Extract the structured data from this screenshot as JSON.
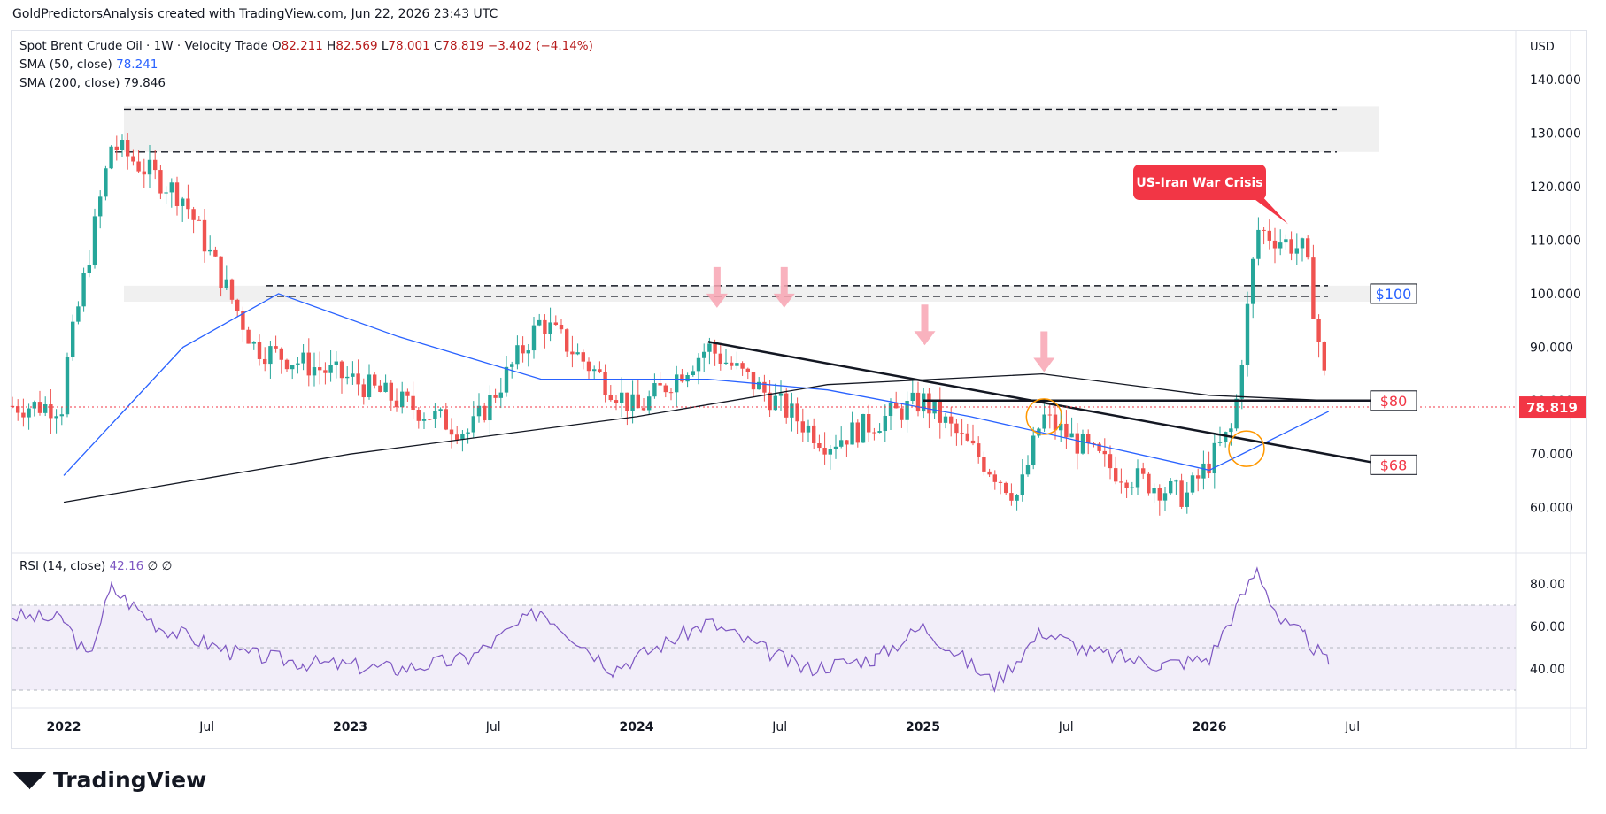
{
  "header": {
    "credit": "GoldPredictorsAnalysis created with TradingView.com, Jun 22, 2026 23:43 UTC"
  },
  "legend": {
    "symbol": "Spot Brent Crude Oil · 1W · Velocity Trade",
    "o_label": "O",
    "o": "82.211",
    "h_label": "H",
    "h": "82.569",
    "l_label": "L",
    "l": "78.001",
    "c_label": "C",
    "c": "78.819",
    "chg": "−3.402 (−4.14%)",
    "sma50_label": "SMA (50, close)",
    "sma50": "78.241",
    "sma200_label": "SMA (200, close)",
    "sma200": "79.846"
  },
  "rsi_legend": {
    "label": "RSI (14, close)",
    "value": "42.16",
    "extra": "∅  ∅"
  },
  "currency": "USD",
  "footer": {
    "brand": "TradingView"
  },
  "colors": {
    "up": "#26a69a",
    "down": "#ef5350",
    "sma50": "#2962ff",
    "sma200": "#131722",
    "rsi": "#7e57c2",
    "annotation": "#f23645"
  },
  "chart_data": {
    "type": "candlestick",
    "title": "Spot Brent Crude Oil · 1W · Velocity Trade",
    "x_labels": [
      "2022",
      "Jul",
      "2023",
      "Jul",
      "2024",
      "Jul",
      "2025",
      "Jul",
      "2026",
      "Jul"
    ],
    "y_ticks": [
      "140.000",
      "130.000",
      "120.000",
      "110.000",
      "100.000",
      "90.000",
      "80.000",
      "70.000",
      "60.000"
    ],
    "ylim": [
      52,
      145
    ],
    "last_price": "78.819",
    "price_points": [
      {
        "d": "2022-01",
        "v": 84
      },
      {
        "d": "2022-03",
        "v": 128
      },
      {
        "d": "2022-06",
        "v": 118
      },
      {
        "d": "2022-09",
        "v": 90
      },
      {
        "d": "2023-01",
        "v": 84
      },
      {
        "d": "2023-06",
        "v": 74
      },
      {
        "d": "2023-09",
        "v": 95
      },
      {
        "d": "2024-01",
        "v": 78
      },
      {
        "d": "2024-04",
        "v": 90
      },
      {
        "d": "2024-09",
        "v": 72
      },
      {
        "d": "2025-01",
        "v": 80
      },
      {
        "d": "2025-05",
        "v": 62
      },
      {
        "d": "2025-06",
        "v": 77
      },
      {
        "d": "2025-09",
        "v": 67
      },
      {
        "d": "2025-12",
        "v": 62
      },
      {
        "d": "2026-02",
        "v": 75
      },
      {
        "d": "2026-03",
        "v": 112
      },
      {
        "d": "2026-05",
        "v": 108
      },
      {
        "d": "2026-06",
        "v": 79
      }
    ],
    "sma50": [
      {
        "d": "2022-01",
        "v": 66
      },
      {
        "d": "2022-06",
        "v": 90
      },
      {
        "d": "2022-10",
        "v": 100
      },
      {
        "d": "2023-03",
        "v": 92
      },
      {
        "d": "2023-09",
        "v": 84
      },
      {
        "d": "2024-04",
        "v": 84
      },
      {
        "d": "2024-09",
        "v": 82
      },
      {
        "d": "2025-03",
        "v": 77
      },
      {
        "d": "2025-09",
        "v": 71
      },
      {
        "d": "2026-01",
        "v": 67
      },
      {
        "d": "2026-06",
        "v": 78
      }
    ],
    "sma200": [
      {
        "d": "2022-01",
        "v": 61
      },
      {
        "d": "2023-01",
        "v": 70
      },
      {
        "d": "2024-01",
        "v": 77
      },
      {
        "d": "2024-09",
        "v": 83
      },
      {
        "d": "2025-06",
        "v": 85
      },
      {
        "d": "2026-01",
        "v": 81
      },
      {
        "d": "2026-06",
        "v": 80
      }
    ],
    "zones": [
      {
        "from": 126.5,
        "to": 135
      },
      {
        "from": 98.5,
        "to": 101.5
      }
    ],
    "levels": [
      {
        "label": "$100",
        "value": 100,
        "color": "#2962ff"
      },
      {
        "label": "$80",
        "value": 80,
        "color": "#f23645"
      },
      {
        "label": "$68",
        "value": 68,
        "color": "#f23645"
      }
    ],
    "annotation": "US-Iran War Crisis",
    "rsi": {
      "ticks": [
        "80.00",
        "60.00",
        "40.00"
      ],
      "band": [
        30,
        70
      ],
      "points": [
        {
          "d": "2022-01",
          "v": 63
        },
        {
          "d": "2022-02",
          "v": 45
        },
        {
          "d": "2022-03",
          "v": 78
        },
        {
          "d": "2022-05",
          "v": 60
        },
        {
          "d": "2022-08",
          "v": 48
        },
        {
          "d": "2022-11",
          "v": 43
        },
        {
          "d": "2023-03",
          "v": 40
        },
        {
          "d": "2023-06",
          "v": 45
        },
        {
          "d": "2023-09",
          "v": 68
        },
        {
          "d": "2023-12",
          "v": 40
        },
        {
          "d": "2024-04",
          "v": 62
        },
        {
          "d": "2024-08",
          "v": 40
        },
        {
          "d": "2024-11",
          "v": 45
        },
        {
          "d": "2025-01",
          "v": 60
        },
        {
          "d": "2025-04",
          "v": 33
        },
        {
          "d": "2025-06",
          "v": 58
        },
        {
          "d": "2025-08",
          "v": 48
        },
        {
          "d": "2025-11",
          "v": 42
        },
        {
          "d": "2026-01",
          "v": 45
        },
        {
          "d": "2026-03",
          "v": 87
        },
        {
          "d": "2026-04",
          "v": 62
        },
        {
          "d": "2026-05",
          "v": 55
        },
        {
          "d": "2026-06",
          "v": 42
        }
      ]
    }
  }
}
